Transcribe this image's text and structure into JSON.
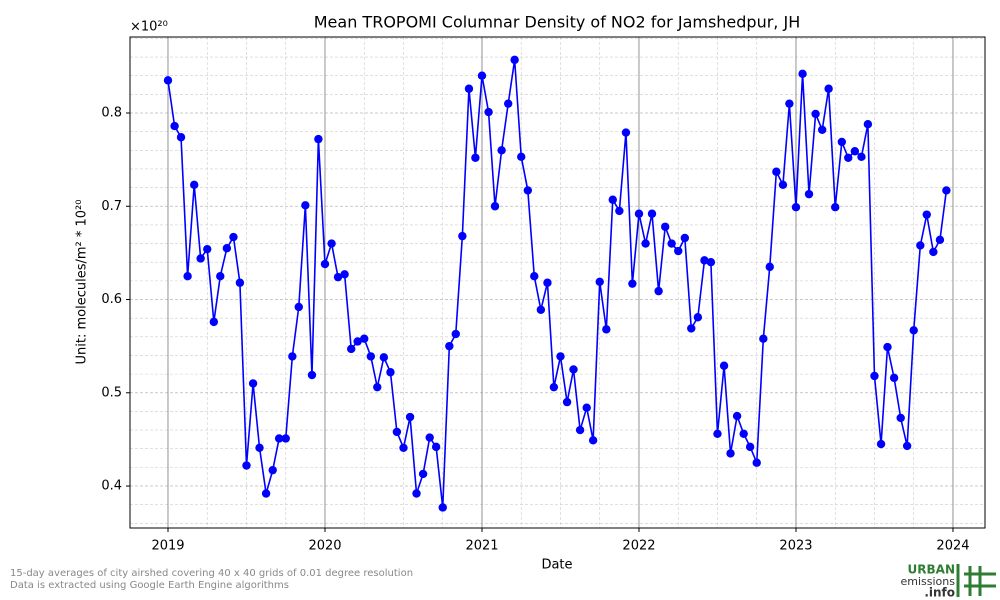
{
  "chart_data": {
    "type": "line",
    "title": "Mean TROPOMI Columnar Density of NO2 for Jamshedpur, JH",
    "y_offset_label": "×10²⁰",
    "x_label": "Date",
    "y_label": "Unit: molecules/m² * 10²⁰",
    "footnotes": [
      "15-day averages of city airshed covering 40 x 40 grids of 0.01 degree resolution",
      "Data is extracted using Google Earth Engine algorithms"
    ],
    "logo": [
      "URBAN",
      "emissions",
      ".info"
    ],
    "color": "#0000ff",
    "grid": true,
    "xlim": [
      2018.758,
      2024.204
    ],
    "ylim": [
      0.355,
      0.8815
    ],
    "xticks": [
      2019,
      2020,
      2021,
      2022,
      2023,
      2024
    ],
    "yticks": [
      0.4,
      0.5,
      0.6,
      0.7,
      0.8
    ],
    "x_minor_ticks": [
      2019.25,
      2019.5,
      2019.75,
      2020.25,
      2020.5,
      2020.75,
      2021.25,
      2021.5,
      2021.75,
      2022.25,
      2022.5,
      2022.75,
      2023.25,
      2023.5,
      2023.75
    ],
    "y_minor_ticks": [
      0.36,
      0.38,
      0.42,
      0.44,
      0.46,
      0.48,
      0.52,
      0.54,
      0.56,
      0.58,
      0.62,
      0.64,
      0.66,
      0.68,
      0.72,
      0.74,
      0.76,
      0.78,
      0.82,
      0.84,
      0.86,
      0.88
    ],
    "x": [
      2019,
      2019.042,
      2019.083,
      2019.125,
      2019.167,
      2019.208,
      2019.25,
      2019.292,
      2019.333,
      2019.375,
      2019.417,
      2019.458,
      2019.5,
      2019.542,
      2019.583,
      2019.625,
      2019.667,
      2019.708,
      2019.75,
      2019.792,
      2019.833,
      2019.875,
      2019.917,
      2019.958,
      2020,
      2020.042,
      2020.083,
      2020.125,
      2020.167,
      2020.208,
      2020.25,
      2020.292,
      2020.333,
      2020.375,
      2020.417,
      2020.458,
      2020.5,
      2020.542,
      2020.583,
      2020.625,
      2020.667,
      2020.708,
      2020.75,
      2020.792,
      2020.833,
      2020.875,
      2020.917,
      2020.958,
      2021,
      2021.042,
      2021.083,
      2021.125,
      2021.167,
      2021.208,
      2021.25,
      2021.292,
      2021.333,
      2021.375,
      2021.417,
      2021.458,
      2021.5,
      2021.542,
      2021.583,
      2021.625,
      2021.667,
      2021.708,
      2021.75,
      2021.792,
      2021.833,
      2021.875,
      2021.917,
      2021.958,
      2022,
      2022.042,
      2022.083,
      2022.125,
      2022.167,
      2022.208,
      2022.25,
      2022.292,
      2022.333,
      2022.375,
      2022.417,
      2022.458,
      2022.5,
      2022.542,
      2022.583,
      2022.625,
      2022.667,
      2022.708,
      2022.75,
      2022.792,
      2022.833,
      2022.875,
      2022.917,
      2022.958,
      2023,
      2023.042,
      2023.083,
      2023.125,
      2023.167,
      2023.208,
      2023.25,
      2023.292,
      2023.333,
      2023.375,
      2023.417,
      2023.458,
      2023.5,
      2023.542,
      2023.583,
      2023.625,
      2023.667,
      2023.708,
      2023.75,
      2023.792,
      2023.833,
      2023.875,
      2023.917,
      2023.958
    ],
    "values": [
      0.835,
      0.786,
      0.774,
      0.625,
      0.723,
      0.644,
      0.654,
      0.576,
      0.625,
      0.655,
      0.667,
      0.618,
      0.422,
      0.51,
      0.441,
      0.392,
      0.417,
      0.451,
      0.451,
      0.539,
      0.592,
      0.701,
      0.519,
      0.772,
      0.638,
      0.66,
      0.624,
      0.627,
      0.547,
      0.555,
      0.558,
      0.539,
      0.506,
      0.538,
      0.522,
      0.458,
      0.441,
      0.474,
      0.392,
      0.413,
      0.452,
      0.442,
      0.377,
      0.55,
      0.563,
      0.668,
      0.826,
      0.752,
      0.84,
      0.801,
      0.7,
      0.76,
      0.81,
      0.857,
      0.753,
      0.717,
      0.625,
      0.589,
      0.618,
      0.506,
      0.539,
      0.49,
      0.525,
      0.46,
      0.484,
      0.449,
      0.619,
      0.568,
      0.707,
      0.695,
      0.779,
      0.617,
      0.692,
      0.66,
      0.692,
      0.609,
      0.678,
      0.66,
      0.652,
      0.666,
      0.569,
      0.581,
      0.642,
      0.64,
      0.456,
      0.529,
      0.435,
      0.475,
      0.456,
      0.442,
      0.425,
      0.558,
      0.635,
      0.737,
      0.723,
      0.81,
      0.699,
      0.842,
      0.713,
      0.799,
      0.782,
      0.826,
      0.699,
      0.769,
      0.752,
      0.759,
      0.753,
      0.788,
      0.518,
      0.445,
      0.549,
      0.516,
      0.473,
      0.443,
      0.567,
      0.658,
      0.691,
      0.651,
      0.664,
      0.717
    ]
  }
}
